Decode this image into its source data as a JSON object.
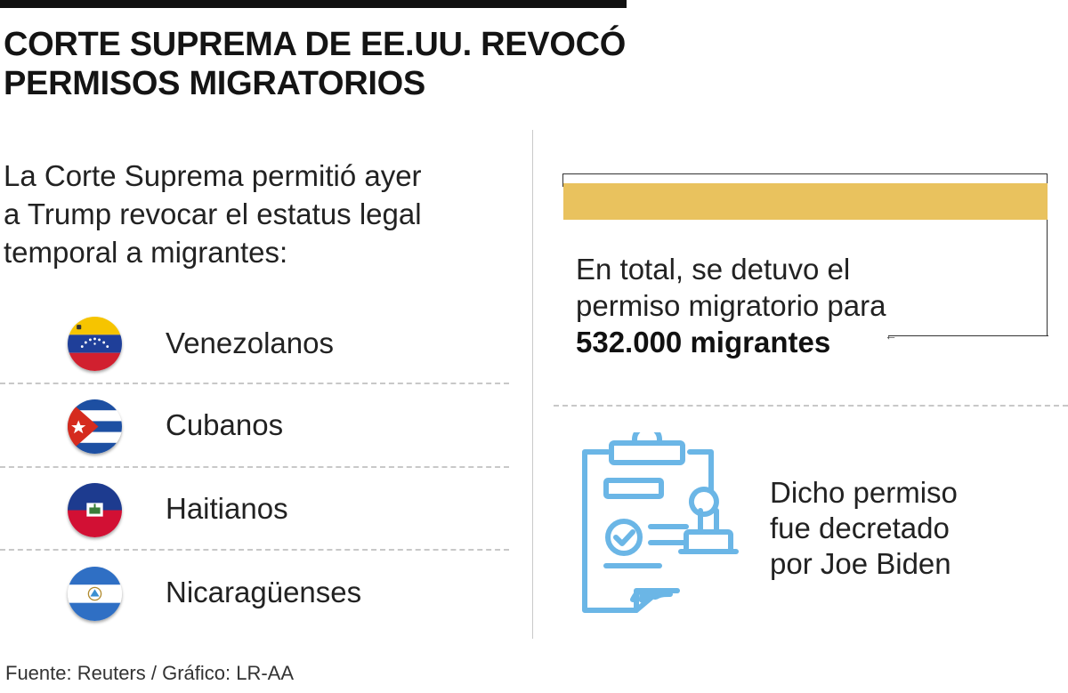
{
  "title": {
    "line1": "CORTE SUPREMA DE EE.UU. REVOCÓ",
    "line2": "PERMISOS MIGRATORIOS"
  },
  "intro": {
    "line1": "La Corte Suprema permitió ayer",
    "line2": "a Trump revocar el estatus legal",
    "line3": "temporal a migrantes:"
  },
  "countries": [
    {
      "label": "Venezolanos",
      "icon": "venezuela-flag-icon"
    },
    {
      "label": "Cubanos",
      "icon": "cuba-flag-icon"
    },
    {
      "label": "Haitianos",
      "icon": "haiti-flag-icon"
    },
    {
      "label": "Nicaragüenses",
      "icon": "nicaragua-flag-icon"
    }
  ],
  "total": {
    "line1": "En total, se detuvo el",
    "line2": "permiso migratorio para",
    "highlight": "532.000 migrantes"
  },
  "decree": {
    "icon": "approved-document-icon",
    "line1": "Dicho permiso",
    "line2": "fue decretado",
    "line3": "por Joe Biden"
  },
  "source": "Fuente: Reuters / Gráfico: LR-AA",
  "colors": {
    "gold": "#e9c25e",
    "icon_blue": "#6bb6e6"
  }
}
